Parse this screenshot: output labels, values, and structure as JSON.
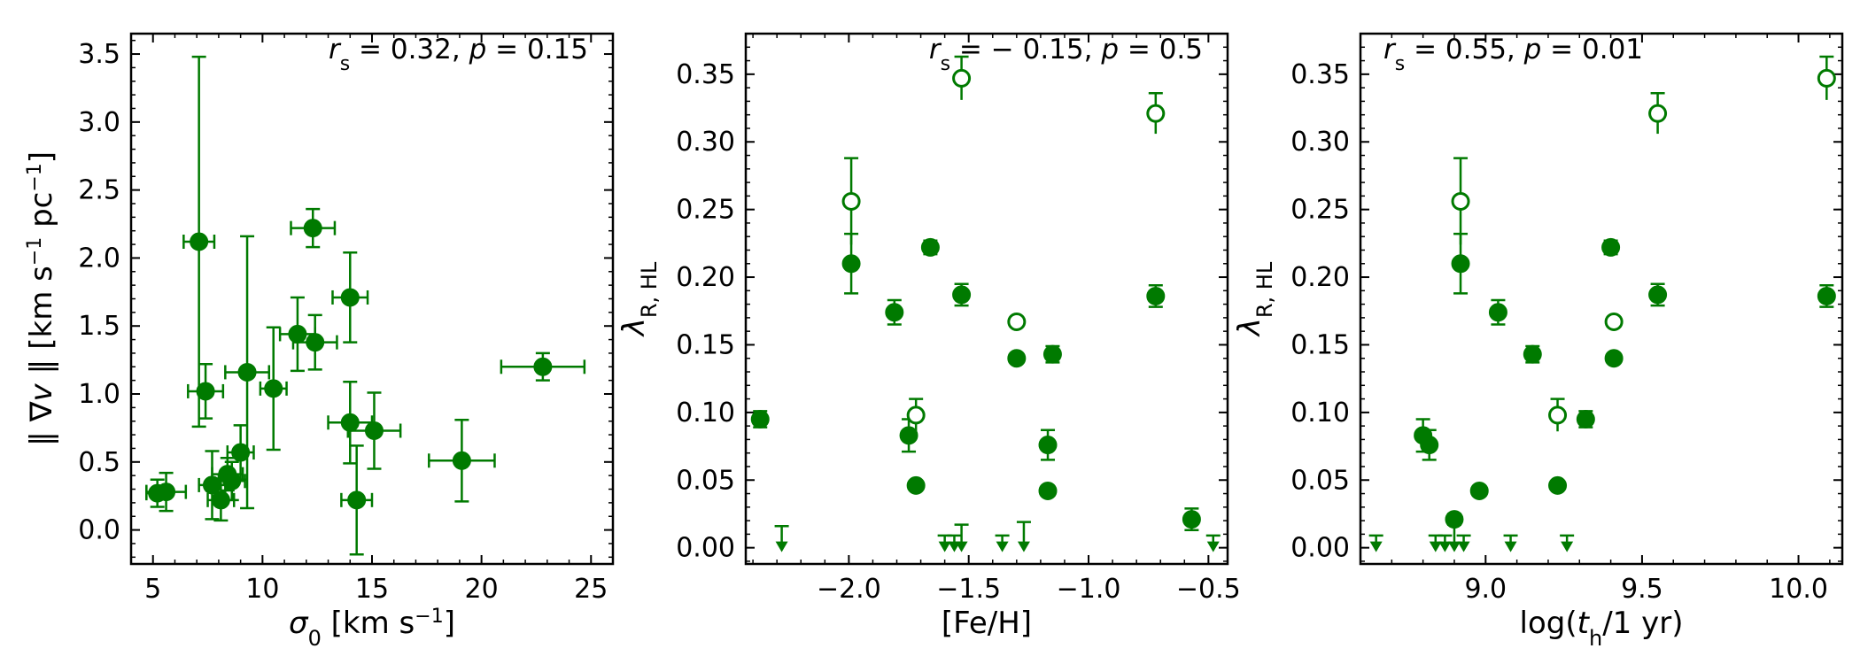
{
  "colors": {
    "series": "#007a00",
    "axes": "#000000",
    "background": "#ffffff"
  },
  "chart_data": [
    {
      "type": "scatter",
      "xlabel": "σ0 [km s⁻¹]",
      "ylabel": "‖ ∇v ‖ [km s⁻¹ pc⁻¹]",
      "annotation": "rs = 0.32, p = 0.15",
      "xlim": [
        4,
        26
      ],
      "ylim": [
        -0.25,
        3.65
      ],
      "xticks": [
        5,
        10,
        15,
        20,
        25
      ],
      "yticks": [
        0.0,
        0.5,
        1.0,
        1.5,
        2.0,
        2.5,
        3.0,
        3.5
      ],
      "xtick_labels": [
        "5",
        "10",
        "15",
        "20",
        "25"
      ],
      "ytick_labels": [
        "0.0",
        "0.5",
        "1.0",
        "1.5",
        "2.0",
        "2.5",
        "3.0",
        "3.5"
      ],
      "grid": false,
      "legend": "none",
      "points": [
        {
          "x": 5.6,
          "y": 0.28,
          "xerr": 0.9,
          "yerr": 0.14,
          "filled": true
        },
        {
          "x": 5.2,
          "y": 0.27,
          "xerr": 0.5,
          "yerr": 0.1,
          "filled": true
        },
        {
          "x": 7.1,
          "y": 2.12,
          "xerr": 0.7,
          "yerr": 1.36,
          "filled": true
        },
        {
          "x": 7.4,
          "y": 1.02,
          "xerr": 0.8,
          "yerr": 0.2,
          "filled": true
        },
        {
          "x": 7.7,
          "y": 0.33,
          "xerr": 0.6,
          "yerr": 0.25,
          "filled": true
        },
        {
          "x": 8.1,
          "y": 0.22,
          "xerr": 0.6,
          "yerr": 0.15,
          "filled": true
        },
        {
          "x": 8.4,
          "y": 0.41,
          "xerr": 0.7,
          "yerr": 0.12,
          "filled": true
        },
        {
          "x": 8.6,
          "y": 0.36,
          "xerr": 0.6,
          "yerr": 0.14,
          "filled": true
        },
        {
          "x": 9.0,
          "y": 0.57,
          "xerr": 0.6,
          "yerr": 0.2,
          "filled": true
        },
        {
          "x": 9.3,
          "y": 1.16,
          "xerr": 1.0,
          "yerr": 1.0,
          "filled": true
        },
        {
          "x": 10.5,
          "y": 1.04,
          "xerr": 0.6,
          "yerr": 0.45,
          "filled": true
        },
        {
          "x": 11.6,
          "y": 1.44,
          "xerr": 0.8,
          "yerr": 0.27,
          "filled": true
        },
        {
          "x": 12.3,
          "y": 2.22,
          "xerr": 1.0,
          "yerr": 0.14,
          "filled": true
        },
        {
          "x": 12.4,
          "y": 1.38,
          "xerr": 1.0,
          "yerr": 0.2,
          "filled": true
        },
        {
          "x": 14.0,
          "y": 1.71,
          "xerr": 0.8,
          "yerr": 0.33,
          "filled": true
        },
        {
          "x": 14.0,
          "y": 0.79,
          "xerr": 1.0,
          "yerr": 0.3,
          "filled": true
        },
        {
          "x": 14.3,
          "y": 0.22,
          "xerr": 0.7,
          "yerr": 0.4,
          "filled": true
        },
        {
          "x": 15.1,
          "y": 0.73,
          "xerr": 1.2,
          "yerr": 0.28,
          "filled": true
        },
        {
          "x": 19.1,
          "y": 0.51,
          "xerr": 1.5,
          "yerr": 0.3,
          "filled": true
        },
        {
          "x": 22.8,
          "y": 1.2,
          "xerr": 1.9,
          "yerr": 0.1,
          "filled": true
        }
      ]
    },
    {
      "type": "scatter",
      "xlabel": "[Fe/H]",
      "ylabel": "λR, HL",
      "annotation": "rs = − 0.15, p = 0.5",
      "xlim": [
        -2.43,
        -0.42
      ],
      "ylim": [
        -0.012,
        0.38
      ],
      "xticks": [
        -2.0,
        -1.5,
        -1.0,
        -0.5
      ],
      "yticks": [
        0.0,
        0.05,
        0.1,
        0.15,
        0.2,
        0.25,
        0.3,
        0.35
      ],
      "xtick_labels": [
        "−2.0",
        "−1.5",
        "−1.0",
        "−0.5"
      ],
      "ytick_labels": [
        "0.00",
        "0.05",
        "0.10",
        "0.15",
        "0.20",
        "0.25",
        "0.30",
        "0.35"
      ],
      "grid": false,
      "legend": "none",
      "points": [
        {
          "x": -2.37,
          "y": 0.095,
          "yerr": 0.006,
          "filled": true
        },
        {
          "x": -1.99,
          "y": 0.21,
          "yerr": 0.022,
          "filled": true
        },
        {
          "x": -1.99,
          "y": 0.256,
          "yerr": 0.032,
          "filled": false
        },
        {
          "x": -1.81,
          "y": 0.174,
          "yerr": 0.009,
          "filled": true
        },
        {
          "x": -1.75,
          "y": 0.083,
          "yerr": 0.012,
          "filled": true
        },
        {
          "x": -1.72,
          "y": 0.046,
          "yerr": 0,
          "filled": true
        },
        {
          "x": -1.72,
          "y": 0.098,
          "yerr": 0.012,
          "filled": false
        },
        {
          "x": -1.66,
          "y": 0.222,
          "yerr": 0.005,
          "filled": true
        },
        {
          "x": -1.53,
          "y": 0.187,
          "yerr": 0.008,
          "filled": true
        },
        {
          "x": -1.53,
          "y": 0.347,
          "yerr": 0.016,
          "filled": false
        },
        {
          "x": -1.3,
          "y": 0.14,
          "yerr": 0,
          "filled": true
        },
        {
          "x": -1.3,
          "y": 0.167,
          "yerr": 0,
          "filled": false
        },
        {
          "x": -1.15,
          "y": 0.143,
          "yerr": 0.006,
          "filled": true
        },
        {
          "x": -1.17,
          "y": 0.076,
          "yerr": 0.011,
          "filled": true
        },
        {
          "x": -1.17,
          "y": 0.042,
          "yerr": 0,
          "filled": true
        },
        {
          "x": -0.72,
          "y": 0.186,
          "yerr": 0.008,
          "filled": true
        },
        {
          "x": -0.72,
          "y": 0.321,
          "yerr": 0.015,
          "filled": false
        },
        {
          "x": -0.57,
          "y": 0.021,
          "yerr": 0.008,
          "filled": true
        }
      ],
      "upper_limits": [
        {
          "x": -2.28,
          "y": 0.016
        },
        {
          "x": -1.6,
          "y": 0.009
        },
        {
          "x": -1.56,
          "y": 0.009
        },
        {
          "x": -1.53,
          "y": 0.017
        },
        {
          "x": -1.36,
          "y": 0.009
        },
        {
          "x": -1.27,
          "y": 0.019
        },
        {
          "x": -0.48,
          "y": 0.009
        }
      ]
    },
    {
      "type": "scatter",
      "xlabel": "log(th/1 yr)",
      "ylabel": "λR, HL",
      "annotation": "rs = 0.55, p = 0.01",
      "xlim": [
        8.6,
        10.14
      ],
      "ylim": [
        -0.012,
        0.38
      ],
      "xticks": [
        9.0,
        9.5,
        10.0
      ],
      "yticks": [
        0.0,
        0.05,
        0.1,
        0.15,
        0.2,
        0.25,
        0.3,
        0.35
      ],
      "xtick_labels": [
        "9.0",
        "9.5",
        "10.0"
      ],
      "ytick_labels": [
        "0.00",
        "0.05",
        "0.10",
        "0.15",
        "0.20",
        "0.25",
        "0.30",
        "0.35"
      ],
      "grid": false,
      "legend": "none",
      "points": [
        {
          "x": 8.8,
          "y": 0.083,
          "yerr": 0.012,
          "filled": true
        },
        {
          "x": 8.82,
          "y": 0.076,
          "yerr": 0.011,
          "filled": true
        },
        {
          "x": 8.9,
          "y": 0.021,
          "yerr": 0.004,
          "filled": true
        },
        {
          "x": 8.92,
          "y": 0.21,
          "yerr": 0.022,
          "filled": true
        },
        {
          "x": 8.92,
          "y": 0.256,
          "yerr": 0.032,
          "filled": false
        },
        {
          "x": 8.98,
          "y": 0.042,
          "yerr": 0,
          "filled": true
        },
        {
          "x": 9.04,
          "y": 0.174,
          "yerr": 0.009,
          "filled": true
        },
        {
          "x": 9.15,
          "y": 0.143,
          "yerr": 0.006,
          "filled": true
        },
        {
          "x": 9.23,
          "y": 0.046,
          "yerr": 0,
          "filled": true
        },
        {
          "x": 9.23,
          "y": 0.098,
          "yerr": 0.012,
          "filled": false
        },
        {
          "x": 9.32,
          "y": 0.095,
          "yerr": 0.006,
          "filled": true
        },
        {
          "x": 9.4,
          "y": 0.222,
          "yerr": 0.005,
          "filled": true
        },
        {
          "x": 9.41,
          "y": 0.14,
          "yerr": 0,
          "filled": true
        },
        {
          "x": 9.41,
          "y": 0.167,
          "yerr": 0,
          "filled": false
        },
        {
          "x": 9.55,
          "y": 0.187,
          "yerr": 0.008,
          "filled": true
        },
        {
          "x": 9.55,
          "y": 0.321,
          "yerr": 0.015,
          "filled": false
        },
        {
          "x": 10.09,
          "y": 0.186,
          "yerr": 0.008,
          "filled": true
        },
        {
          "x": 10.09,
          "y": 0.347,
          "yerr": 0.016,
          "filled": false
        }
      ],
      "upper_limits": [
        {
          "x": 8.65,
          "y": 0.009
        },
        {
          "x": 8.84,
          "y": 0.009
        },
        {
          "x": 8.87,
          "y": 0.009
        },
        {
          "x": 8.9,
          "y": 0.017
        },
        {
          "x": 8.93,
          "y": 0.009
        },
        {
          "x": 9.08,
          "y": 0.009
        },
        {
          "x": 9.26,
          "y": 0.009
        }
      ]
    }
  ]
}
